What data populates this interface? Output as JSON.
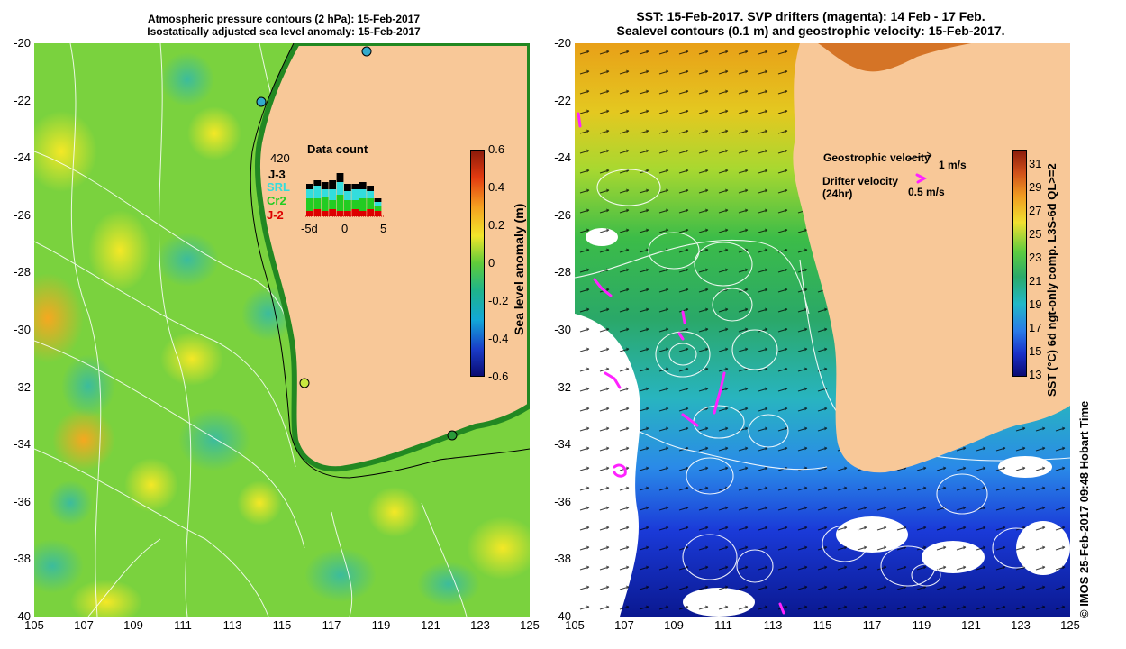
{
  "left_panel": {
    "title_line1": "Atmospheric pressure contours (2 hPa): 15-Feb-2017",
    "title_line2": "Isostatically adjusted sea level anomaly: 15-Feb-2017",
    "y_ticks": [
      "-20",
      "-22",
      "-24",
      "-26",
      "-28",
      "-30",
      "-32",
      "-34",
      "-36",
      "-38",
      "-40"
    ],
    "x_ticks": [
      "105",
      "107",
      "109",
      "111",
      "113",
      "115",
      "117",
      "119",
      "121",
      "123",
      "125"
    ],
    "colorbar": {
      "label": "Sea level anomaly (m)",
      "ticks": [
        "0.6",
        "0.4",
        "0.2",
        "0",
        "-0.2",
        "-0.4",
        "-0.6"
      ]
    },
    "inset": {
      "title": "Data count",
      "max_label": "420",
      "legend": [
        {
          "label": "J-3",
          "color": "#000000"
        },
        {
          "label": "SRL",
          "color": "#33dddd"
        },
        {
          "label": "Cr2",
          "color": "#22cc22"
        },
        {
          "label": "J-2",
          "color": "#dd0000"
        }
      ],
      "x_ticks": [
        "-5d",
        "0",
        "5"
      ]
    }
  },
  "right_panel": {
    "title_line1": "SST: 15-Feb-2017. SVP drifters (magenta): 14 Feb - 17 Feb.",
    "title_line2": "Sealevel contours (0.1 m) and geostrophic velocity: 15-Feb-2017.",
    "y_ticks": [
      "-20",
      "-22",
      "-24",
      "-26",
      "-28",
      "-30",
      "-32",
      "-34",
      "-36",
      "-38",
      "-40"
    ],
    "x_ticks": [
      "105",
      "107",
      "109",
      "111",
      "113",
      "115",
      "117",
      "119",
      "121",
      "123",
      "125"
    ],
    "legend": {
      "geostrophic_label": "Geostrophic velocity",
      "geostrophic_scale": "1 m/s",
      "drifter_label_1": "Drifter velocity",
      "drifter_label_2": "(24hr)",
      "drifter_scale": "0.5 m/s"
    },
    "colorbar": {
      "label": "SST (°C) 6d ngt-only comp. L3S-6d QL>=2",
      "ticks": [
        "31",
        "29",
        "27",
        "25",
        "23",
        "21",
        "19",
        "17",
        "15",
        "13"
      ]
    }
  },
  "credit": "© IMOS 25-Feb-2017 09:48 Hobart Time",
  "colors": {
    "land": "#f8c898",
    "magenta": "#ff22ff"
  }
}
